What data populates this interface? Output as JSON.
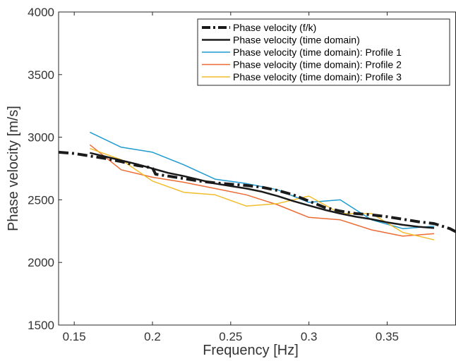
{
  "chart_data": {
    "type": "line",
    "xlabel": "Frequency [Hz]",
    "ylabel": "Phase velocity [m/s]",
    "xlim": [
      0.14,
      0.394
    ],
    "ylim": [
      1500,
      4000
    ],
    "x_ticks": [
      0.15,
      0.2,
      0.25,
      0.3,
      0.35
    ],
    "x_tick_labels": [
      "0.15",
      "0.2",
      "0.25",
      "0.3",
      "0.35"
    ],
    "y_ticks": [
      1500,
      2000,
      2500,
      3000,
      3500,
      4000
    ],
    "y_tick_labels": [
      "1500",
      "2000",
      "2500",
      "3000",
      "3500",
      "4000"
    ],
    "grid": false,
    "legend_position": "top-right",
    "series": [
      {
        "name": "Phase velocity (f/k)",
        "color": "#1a1a1a",
        "style": "dashdot",
        "width": 4,
        "x": [
          0.14,
          0.15,
          0.16,
          0.17,
          0.18,
          0.19,
          0.2,
          0.202,
          0.21,
          0.22,
          0.23,
          0.24,
          0.25,
          0.26,
          0.27,
          0.28,
          0.29,
          0.3,
          0.31,
          0.32,
          0.33,
          0.34,
          0.35,
          0.36,
          0.37,
          0.38,
          0.39,
          0.394
        ],
        "values": [
          2880,
          2870,
          2850,
          2830,
          2805,
          2775,
          2755,
          2705,
          2690,
          2670,
          2650,
          2635,
          2625,
          2615,
          2600,
          2575,
          2540,
          2490,
          2440,
          2410,
          2390,
          2380,
          2365,
          2345,
          2325,
          2310,
          2270,
          2245
        ]
      },
      {
        "name": "Phase velocity (time domain)",
        "color": "#1a1a1a",
        "style": "solid",
        "width": 2.5,
        "x": [
          0.16,
          0.17,
          0.18,
          0.19,
          0.2,
          0.21,
          0.22,
          0.23,
          0.24,
          0.25,
          0.26,
          0.27,
          0.28,
          0.29,
          0.3,
          0.31,
          0.32,
          0.33,
          0.34,
          0.35,
          0.36,
          0.37,
          0.38
        ],
        "values": [
          2875,
          2845,
          2815,
          2785,
          2750,
          2715,
          2690,
          2660,
          2630,
          2610,
          2590,
          2565,
          2530,
          2490,
          2455,
          2420,
          2390,
          2365,
          2345,
          2320,
          2300,
          2285,
          2275
        ]
      },
      {
        "name": "Phase velocity (time domain): Profile 1",
        "color": "#1f9bd1",
        "style": "solid",
        "width": 1.5,
        "x": [
          0.16,
          0.18,
          0.2,
          0.22,
          0.24,
          0.26,
          0.28,
          0.3,
          0.32,
          0.34,
          0.36,
          0.38
        ],
        "values": [
          3040,
          2920,
          2880,
          2780,
          2665,
          2630,
          2580,
          2480,
          2500,
          2340,
          2270,
          2290
        ]
      },
      {
        "name": "Phase velocity (time domain): Profile 2",
        "color": "#ee6a33",
        "style": "solid",
        "width": 1.5,
        "x": [
          0.16,
          0.18,
          0.2,
          0.22,
          0.24,
          0.26,
          0.28,
          0.3,
          0.32,
          0.34,
          0.36,
          0.38
        ],
        "values": [
          2940,
          2740,
          2680,
          2640,
          2590,
          2540,
          2460,
          2360,
          2340,
          2260,
          2210,
          2230
        ]
      },
      {
        "name": "Phase velocity (time domain): Profile 3",
        "color": "#f2bc2a",
        "style": "solid",
        "width": 1.5,
        "x": [
          0.16,
          0.18,
          0.2,
          0.22,
          0.24,
          0.26,
          0.28,
          0.3,
          0.32,
          0.34,
          0.36,
          0.38
        ],
        "values": [
          2910,
          2820,
          2650,
          2560,
          2540,
          2450,
          2470,
          2530,
          2390,
          2390,
          2240,
          2180
        ]
      }
    ]
  }
}
